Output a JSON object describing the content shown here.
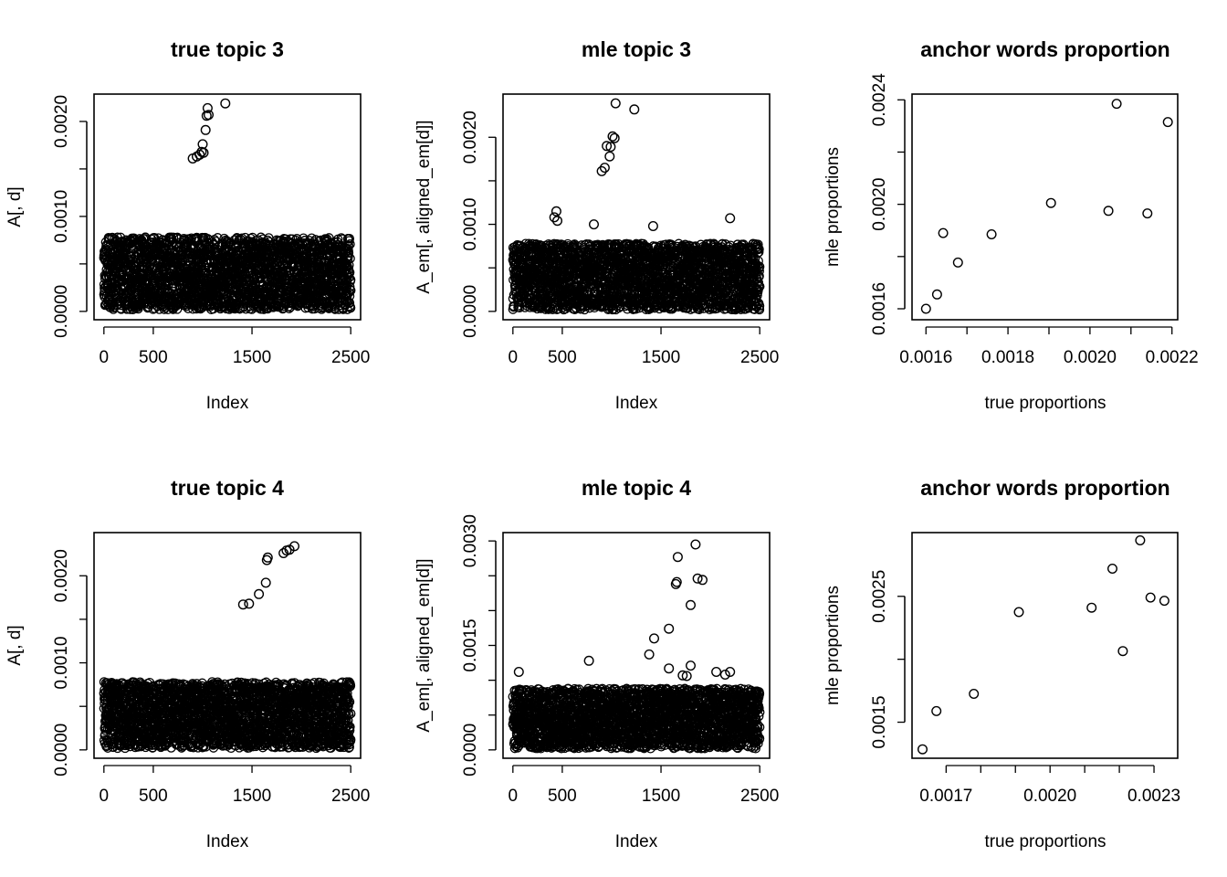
{
  "chart_data": [
    {
      "type": "scatter",
      "title": "true topic 3",
      "xlabel": "Index",
      "ylabel": "A[, d]",
      "xlim": [
        0,
        2500
      ],
      "ylim": [
        0,
        0.0022
      ],
      "xticks": [
        0,
        500,
        1500,
        2500
      ],
      "xtick_labels": [
        "0",
        "500",
        "1500",
        "2500"
      ],
      "yticks": [
        0,
        0.001,
        0.002
      ],
      "ytick_labels": [
        "0.0000",
        "0.0010",
        "0.0020"
      ],
      "yticks_unlabeled": [
        0.0005,
        0.0015
      ],
      "cloud": {
        "x_range": [
          0,
          2500
        ],
        "y_range": [
          2e-05,
          0.00078
        ],
        "n": 2480
      },
      "points": [
        {
          "x": 900,
          "y": 0.00161
        },
        {
          "x": 940,
          "y": 0.00163
        },
        {
          "x": 970,
          "y": 0.00165
        },
        {
          "x": 990,
          "y": 0.00168
        },
        {
          "x": 1000,
          "y": 0.00176
        },
        {
          "x": 1010,
          "y": 0.00167
        },
        {
          "x": 1030,
          "y": 0.00191
        },
        {
          "x": 1040,
          "y": 0.00206
        },
        {
          "x": 1050,
          "y": 0.00214
        },
        {
          "x": 1060,
          "y": 0.00207
        },
        {
          "x": 1230,
          "y": 0.00219
        }
      ]
    },
    {
      "type": "scatter",
      "title": "mle topic 3",
      "xlabel": "Index",
      "ylabel": "A_em[, aligned_em[d]]",
      "xlim": [
        0,
        2500
      ],
      "ylim": [
        0,
        0.0024
      ],
      "xticks": [
        0,
        500,
        1500,
        2500
      ],
      "xtick_labels": [
        "0",
        "500",
        "1500",
        "2500"
      ],
      "yticks": [
        0,
        0.001,
        0.002
      ],
      "ytick_labels": [
        "0.0000",
        "0.0010",
        "0.0020"
      ],
      "yticks_unlabeled": [
        0.0005,
        0.0015
      ],
      "cloud": {
        "x_range": [
          0,
          2500
        ],
        "y_range": [
          2e-05,
          0.00078
        ],
        "n": 2480
      },
      "points": [
        {
          "x": 420,
          "y": 0.00108
        },
        {
          "x": 440,
          "y": 0.00115
        },
        {
          "x": 450,
          "y": 0.00104
        },
        {
          "x": 820,
          "y": 0.001
        },
        {
          "x": 900,
          "y": 0.00161
        },
        {
          "x": 930,
          "y": 0.00165
        },
        {
          "x": 950,
          "y": 0.0019
        },
        {
          "x": 980,
          "y": 0.00178
        },
        {
          "x": 990,
          "y": 0.00189
        },
        {
          "x": 1010,
          "y": 0.00201
        },
        {
          "x": 1030,
          "y": 0.00199
        },
        {
          "x": 1040,
          "y": 0.00239
        },
        {
          "x": 1230,
          "y": 0.00232
        },
        {
          "x": 1420,
          "y": 0.00098
        },
        {
          "x": 2200,
          "y": 0.00107
        }
      ]
    },
    {
      "type": "scatter",
      "title": "anchor words proportion",
      "xlabel": "true  proportions",
      "ylabel": "mle proportions",
      "xlim": [
        0.00159,
        0.00219
      ],
      "ylim": [
        0.00159,
        0.00239
      ],
      "xticks": [
        0.0016,
        0.0017,
        0.0018,
        0.0019,
        0.002,
        0.0021,
        0.0022
      ],
      "xtick_labels": [
        "0.0016",
        "",
        "0.0018",
        "",
        "0.0020",
        "",
        "0.0022"
      ],
      "yticks": [
        0.0016,
        0.0018,
        0.002,
        0.0022,
        0.0024
      ],
      "ytick_labels": [
        "0.0016",
        "",
        "0.0020",
        "",
        "0.0024"
      ],
      "points": [
        {
          "x": 0.0016,
          "y": 0.0016
        },
        {
          "x": 0.001627,
          "y": 0.001655
        },
        {
          "x": 0.001642,
          "y": 0.00189
        },
        {
          "x": 0.001678,
          "y": 0.001777
        },
        {
          "x": 0.00176,
          "y": 0.001885
        },
        {
          "x": 0.001905,
          "y": 0.002005
        },
        {
          "x": 0.002045,
          "y": 0.001975
        },
        {
          "x": 0.002065,
          "y": 0.002385
        },
        {
          "x": 0.00214,
          "y": 0.001965
        },
        {
          "x": 0.00219,
          "y": 0.002315
        }
      ]
    },
    {
      "type": "scatter",
      "title": "true topic 4",
      "xlabel": "Index",
      "ylabel": "A[, d]",
      "xlim": [
        0,
        2500
      ],
      "ylim": [
        0,
        0.0024
      ],
      "xticks": [
        0,
        500,
        1500,
        2500
      ],
      "xtick_labels": [
        "0",
        "500",
        "1500",
        "2500"
      ],
      "yticks": [
        0,
        0.001,
        0.002
      ],
      "ytick_labels": [
        "0.0000",
        "0.0010",
        "0.0020"
      ],
      "yticks_unlabeled": [
        0.0005,
        0.0015
      ],
      "cloud": {
        "x_range": [
          0,
          2500
        ],
        "y_range": [
          2e-05,
          0.00078
        ],
        "n": 2480
      },
      "points": [
        {
          "x": 1410,
          "y": 0.00167
        },
        {
          "x": 1470,
          "y": 0.00168
        },
        {
          "x": 1570,
          "y": 0.00179
        },
        {
          "x": 1640,
          "y": 0.00192
        },
        {
          "x": 1650,
          "y": 0.00218
        },
        {
          "x": 1660,
          "y": 0.00221
        },
        {
          "x": 1820,
          "y": 0.00226
        },
        {
          "x": 1850,
          "y": 0.00229
        },
        {
          "x": 1880,
          "y": 0.0023
        },
        {
          "x": 1930,
          "y": 0.00234
        }
      ]
    },
    {
      "type": "scatter",
      "title": "mle topic 4",
      "xlabel": "Index",
      "ylabel": "A_em[, aligned_em[d]]",
      "xlim": [
        0,
        2500
      ],
      "ylim": [
        0,
        0.003
      ],
      "xticks": [
        0,
        500,
        1500,
        2500
      ],
      "xtick_labels": [
        "0",
        "500",
        "1500",
        "2500"
      ],
      "yticks": [
        0,
        0.0005,
        0.001,
        0.0015,
        0.002,
        0.0025,
        0.003
      ],
      "ytick_labels": [
        "0.0000",
        "",
        "",
        "0.0015",
        "",
        "",
        "0.0030"
      ],
      "cloud": {
        "x_range": [
          0,
          2500
        ],
        "y_range": [
          2e-05,
          0.00088
        ],
        "n": 2480
      },
      "points": [
        {
          "x": 60,
          "y": 0.00112
        },
        {
          "x": 770,
          "y": 0.00128
        },
        {
          "x": 1380,
          "y": 0.00137
        },
        {
          "x": 1430,
          "y": 0.0016
        },
        {
          "x": 1580,
          "y": 0.00174
        },
        {
          "x": 1580,
          "y": 0.00117
        },
        {
          "x": 1650,
          "y": 0.00238
        },
        {
          "x": 1660,
          "y": 0.00241
        },
        {
          "x": 1670,
          "y": 0.00277
        },
        {
          "x": 1720,
          "y": 0.00107
        },
        {
          "x": 1760,
          "y": 0.00106
        },
        {
          "x": 1800,
          "y": 0.00208
        },
        {
          "x": 1800,
          "y": 0.00121
        },
        {
          "x": 1850,
          "y": 0.00295
        },
        {
          "x": 1870,
          "y": 0.00246
        },
        {
          "x": 1920,
          "y": 0.00244
        },
        {
          "x": 2060,
          "y": 0.00112
        },
        {
          "x": 2150,
          "y": 0.00108
        },
        {
          "x": 2200,
          "y": 0.00112
        }
      ]
    },
    {
      "type": "scatter",
      "title": "anchor words proportion",
      "xlabel": "true  proportions",
      "ylabel": "mle proportions",
      "xlim": [
        0.00163,
        0.00234
      ],
      "ylim": [
        0.00128,
        0.00294
      ],
      "xticks": [
        0.0017,
        0.0018,
        0.0019,
        0.002,
        0.0021,
        0.0022,
        0.0023
      ],
      "xtick_labels": [
        "0.0017",
        "",
        "",
        "0.0020",
        "",
        "",
        "0.0023"
      ],
      "yticks": [
        0.0015,
        0.002,
        0.0025
      ],
      "ytick_labels": [
        "0.0015",
        "",
        "0.0025"
      ],
      "points": [
        {
          "x": 0.001632,
          "y": 0.001285
        },
        {
          "x": 0.001672,
          "y": 0.001588
        },
        {
          "x": 0.00178,
          "y": 0.001725
        },
        {
          "x": 0.00191,
          "y": 0.002375
        },
        {
          "x": 0.00212,
          "y": 0.00241
        },
        {
          "x": 0.00218,
          "y": 0.00272
        },
        {
          "x": 0.00221,
          "y": 0.002065
        },
        {
          "x": 0.00226,
          "y": 0.002945
        },
        {
          "x": 0.00229,
          "y": 0.00249
        },
        {
          "x": 0.00233,
          "y": 0.002465
        }
      ]
    }
  ]
}
